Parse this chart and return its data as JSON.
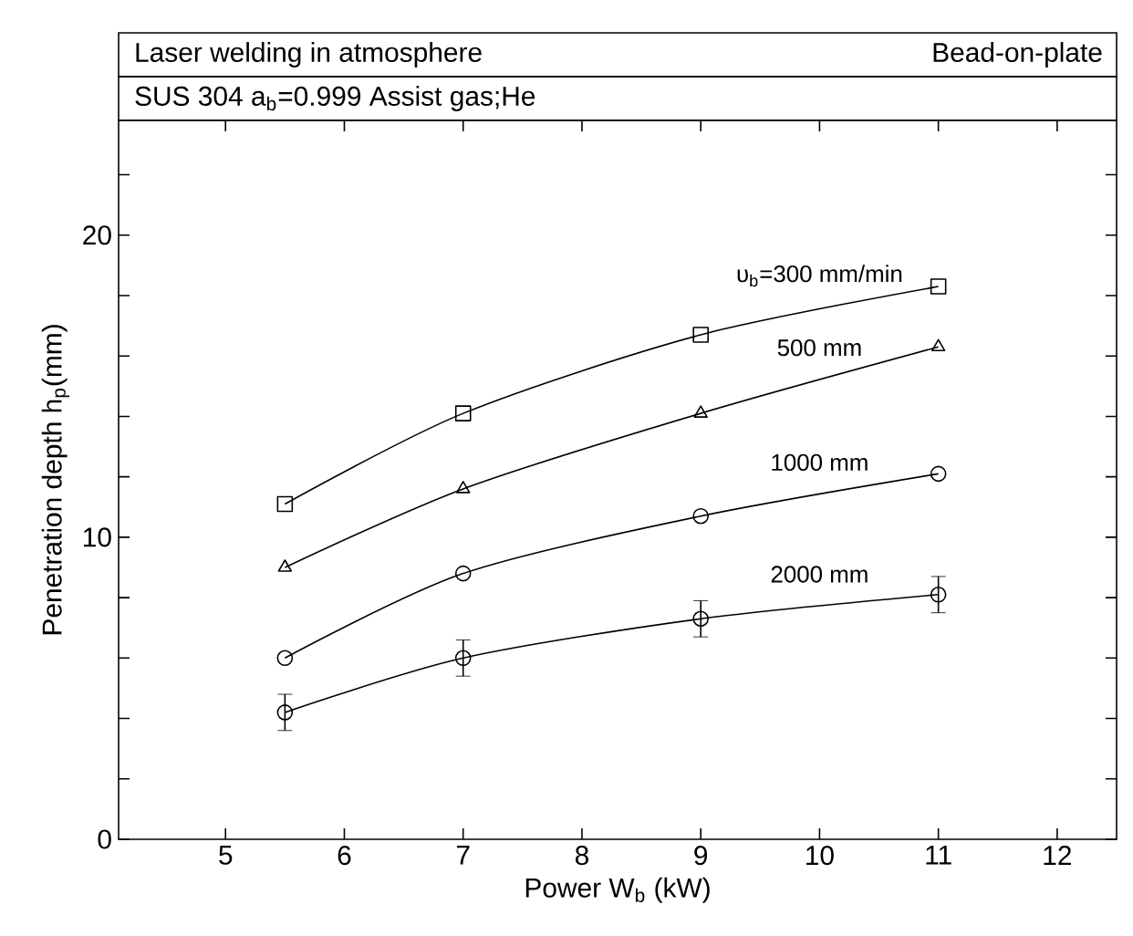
{
  "chart_data": {
    "type": "line",
    "title": "Laser welding in atmosphere",
    "subtitle": "SUS 304   a$_{b}$=0.999   Assist gas;He",
    "annotations": [
      "Bead-on-plate"
    ],
    "xlabel": "Power     W$_{b}$  (kW)",
    "ylabel": "Penetration depth     h$_{p}$(mm)",
    "xlim": [
      4.1,
      12.5
    ],
    "ylim": [
      0,
      23.8
    ],
    "xticks": [
      5,
      6,
      7,
      8,
      9,
      10,
      11,
      12
    ],
    "yticks": [
      0,
      {
        "value": 2,
        "label": null
      },
      {
        "value": 4,
        "label": null
      },
      {
        "value": 6,
        "label": null
      },
      {
        "value": 8,
        "label": null
      },
      10,
      {
        "value": 12,
        "label": null
      },
      {
        "value": 14,
        "label": null
      },
      {
        "value": 16,
        "label": null
      },
      {
        "value": 18,
        "label": null
      },
      20,
      {
        "value": 22,
        "label": null
      }
    ],
    "x": [
      5.5,
      7,
      9,
      11
    ],
    "grid": false,
    "line_style": "solid",
    "series": [
      {
        "name": "υ$_{b}$=300 mm/min",
        "color": "#000000",
        "marker": "square",
        "values": [
          11.1,
          14.1,
          16.7,
          18.3
        ]
      },
      {
        "name": "500 mm",
        "color": "#000000",
        "marker": "triangle",
        "values": [
          9.0,
          11.6,
          14.1,
          16.3
        ]
      },
      {
        "name": "1000 mm",
        "color": "#000000",
        "marker": "circle",
        "values": [
          6.0,
          8.8,
          10.7,
          12.1
        ]
      },
      {
        "name": "2000 mm",
        "color": "#000000",
        "marker": "circle",
        "values": [
          4.2,
          6.0,
          7.3,
          8.1
        ],
        "errors": [
          0.6,
          0.6,
          0.6,
          0.6
        ]
      }
    ]
  }
}
